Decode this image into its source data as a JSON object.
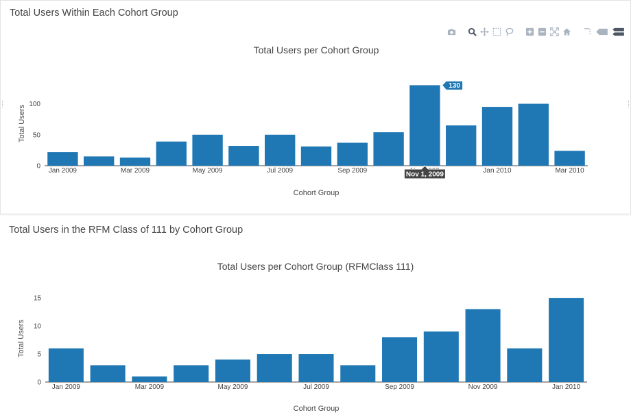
{
  "panels": [
    {
      "title": "Total Users Within Each Cohort Group",
      "hover": {
        "label": "Nov 1, 2009",
        "value": "130",
        "bar_index": 10
      }
    },
    {
      "title": "Total Users in the RFM Class of 111 by Cohort Group"
    }
  ],
  "modebar": [
    "camera-icon",
    "zoom-icon",
    "pan-icon",
    "box-select-icon",
    "lasso-icon",
    "zoom-in-icon",
    "zoom-out-icon",
    "autoscale-icon",
    "reset-axes-icon",
    "spike-lines-icon",
    "hover-closest-icon",
    "hover-compare-icon"
  ],
  "colors": {
    "bar": "#1f77b4",
    "hover_label_bg": "#1f77b4",
    "hover_x_bg": "#444444",
    "axis": "#444444"
  },
  "chart_data": [
    {
      "type": "bar",
      "title": "Total Users per Cohort Group",
      "xlabel": "Cohort Group",
      "ylabel": "Total Users",
      "categories": [
        "2009-01",
        "2009-02",
        "2009-03",
        "2009-04",
        "2009-05",
        "2009-06",
        "2009-07",
        "2009-08",
        "2009-09",
        "2009-10",
        "2009-11",
        "2009-12",
        "2010-01",
        "2010-02",
        "2010-03"
      ],
      "values": [
        22,
        15,
        13,
        39,
        50,
        32,
        50,
        31,
        37,
        54,
        130,
        65,
        95,
        100,
        24
      ],
      "ylim": [
        0,
        136
      ],
      "yticks": [
        0,
        50,
        100
      ],
      "xtick_labels": [
        "Jan 2009",
        "Mar 2009",
        "May 2009",
        "Jul 2009",
        "Sep 2009",
        "Nov 2009",
        "Jan 2010",
        "Mar 2010"
      ],
      "grid": false
    },
    {
      "type": "bar",
      "title": "Total Users per Cohort Group (RFMClass 111)",
      "xlabel": "Cohort Group",
      "ylabel": "Total Users",
      "categories": [
        "2009-01",
        "2009-02",
        "2009-03",
        "2009-04",
        "2009-05",
        "2009-06",
        "2009-07",
        "2009-08",
        "2009-09",
        "2009-10",
        "2009-11",
        "2009-12",
        "2010-01"
      ],
      "values": [
        6,
        3,
        1,
        3,
        4,
        5,
        5,
        3,
        8,
        9,
        13,
        6,
        15
      ],
      "ylim": [
        0,
        15.5
      ],
      "yticks": [
        0,
        5,
        10,
        15
      ],
      "xtick_labels": [
        "Jan 2009",
        "Mar 2009",
        "May 2009",
        "Jul 2009",
        "Sep 2009",
        "Nov 2009",
        "Jan 2010"
      ],
      "grid": false
    }
  ]
}
